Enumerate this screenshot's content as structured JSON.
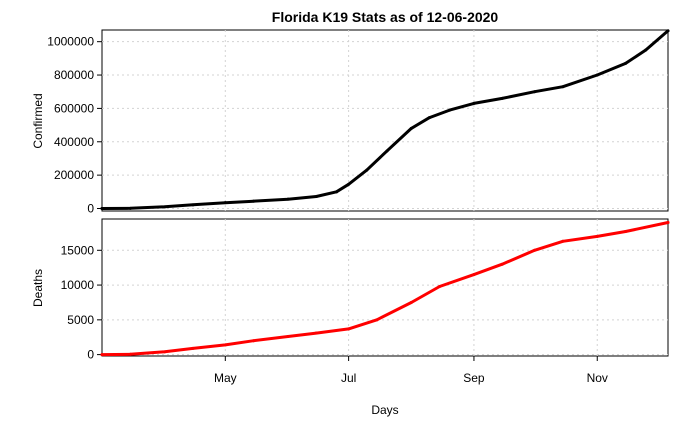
{
  "chart_data": {
    "type": "line",
    "title": "Florida K19 Stats as of 12-06-2020",
    "xlabel": "Days",
    "x_ticks": [
      "May",
      "Jul",
      "Sep",
      "Nov"
    ],
    "x_tick_dates": [
      "2020-05-01",
      "2020-07-01",
      "2020-09-01",
      "2020-11-01"
    ],
    "xlim": [
      "2020-03-01",
      "2020-12-06"
    ],
    "grid": true,
    "panels": [
      {
        "ylabel": "Confirmed",
        "color": "#000000",
        "ylim": [
          -15000,
          1070000
        ],
        "yticks": [
          0,
          200000,
          400000,
          600000,
          800000,
          1000000
        ],
        "ytick_labels": [
          "0",
          "200000",
          "400000",
          "600000",
          "800000",
          "1000000"
        ],
        "series": {
          "x": [
            "2020-03-01",
            "2020-03-15",
            "2020-04-01",
            "2020-04-15",
            "2020-05-01",
            "2020-05-15",
            "2020-06-01",
            "2020-06-15",
            "2020-06-25",
            "2020-07-01",
            "2020-07-10",
            "2020-07-20",
            "2020-08-01",
            "2020-08-10",
            "2020-08-20",
            "2020-09-01",
            "2020-09-15",
            "2020-10-01",
            "2020-10-15",
            "2020-11-01",
            "2020-11-15",
            "2020-11-25",
            "2020-12-06"
          ],
          "values": [
            0,
            1000,
            10000,
            22000,
            35000,
            44000,
            56000,
            72000,
            100000,
            145000,
            230000,
            345000,
            480000,
            545000,
            590000,
            630000,
            660000,
            700000,
            730000,
            800000,
            870000,
            950000,
            1065000
          ]
        }
      },
      {
        "ylabel": "Deaths",
        "color": "#ff0000",
        "ylim": [
          -200,
          19500
        ],
        "yticks": [
          0,
          5000,
          10000,
          15000
        ],
        "ytick_labels": [
          "0",
          "5000",
          "10000",
          "15000"
        ],
        "series": {
          "x": [
            "2020-03-01",
            "2020-03-15",
            "2020-04-01",
            "2020-04-15",
            "2020-05-01",
            "2020-05-15",
            "2020-06-01",
            "2020-06-15",
            "2020-07-01",
            "2020-07-15",
            "2020-08-01",
            "2020-08-15",
            "2020-09-01",
            "2020-09-15",
            "2020-10-01",
            "2020-10-15",
            "2020-11-01",
            "2020-11-15",
            "2020-12-06"
          ],
          "values": [
            0,
            50,
            400,
            900,
            1400,
            2000,
            2600,
            3100,
            3700,
            5000,
            7500,
            9800,
            11500,
            13000,
            15000,
            16300,
            17000,
            17700,
            19000
          ]
        }
      }
    ]
  }
}
